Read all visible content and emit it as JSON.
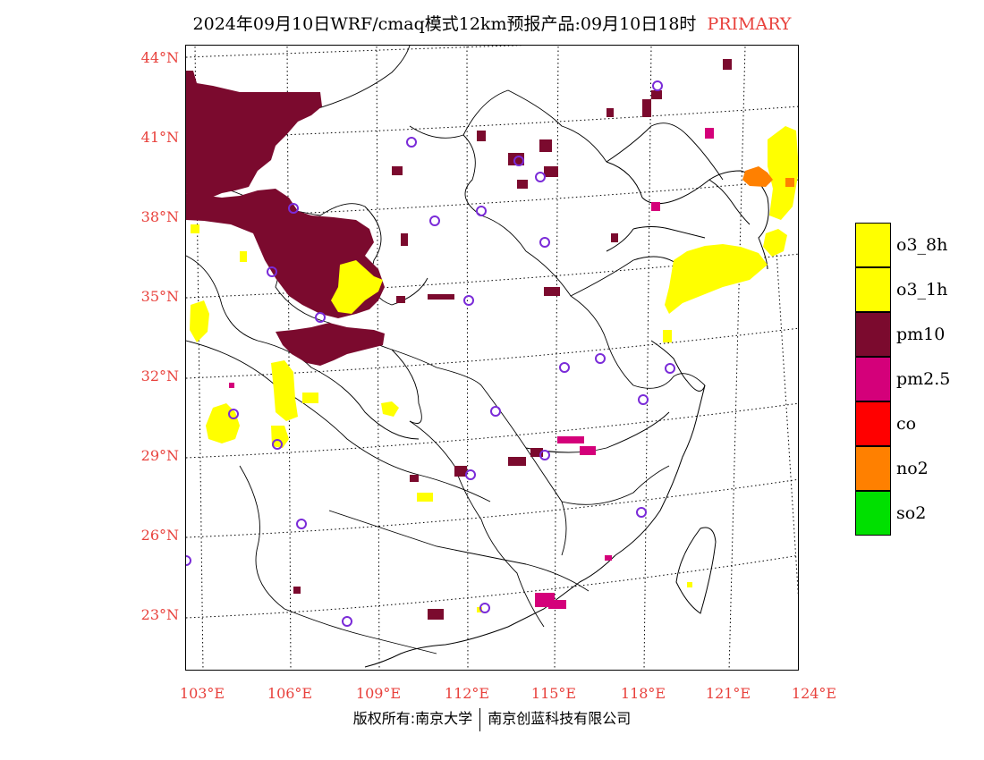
{
  "title": {
    "main": "2024年09月10日WRF/cmaq模式12km预报产品:09月10日18时",
    "tag": "PRIMARY"
  },
  "axes": {
    "lat_labels": [
      "44°N",
      "41°N",
      "38°N",
      "35°N",
      "32°N",
      "29°N",
      "26°N",
      "23°N"
    ],
    "lon_labels": [
      "103°E",
      "106°E",
      "109°E",
      "112°E",
      "115°E",
      "118°E",
      "121°E",
      "124°E"
    ]
  },
  "legend": [
    {
      "label": "o3_8h",
      "color": "#ffff00"
    },
    {
      "label": "o3_1h",
      "color": "#ffff00"
    },
    {
      "label": "pm10",
      "color": "#7b0a2e"
    },
    {
      "label": "pm2.5",
      "color": "#d4007a"
    },
    {
      "label": "co",
      "color": "#ff0000"
    },
    {
      "label": "no2",
      "color": "#ff8000"
    },
    {
      "label": "so2",
      "color": "#00e000"
    }
  ],
  "footer": {
    "left": "版权所有:南京大学",
    "right": "南京创蓝科技有限公司"
  },
  "colors": {
    "accent_red": "#e8413c",
    "pm10": "#7b0a2e",
    "pm25": "#d4007a",
    "o3": "#ffff00",
    "no2": "#ff8000",
    "station_marker": "#7a2bd8"
  }
}
